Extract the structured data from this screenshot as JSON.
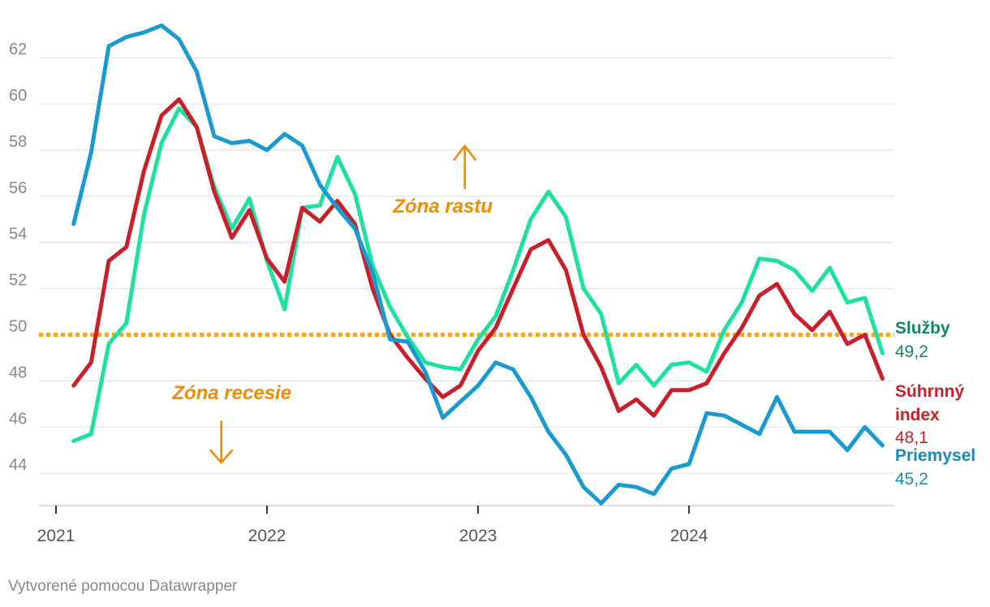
{
  "chart_data": {
    "type": "line",
    "title": "",
    "xlabel": "",
    "ylabel": "",
    "ylim": [
      42.6,
      63.8
    ],
    "yticks": [
      44,
      46,
      48,
      50,
      52,
      54,
      56,
      58,
      60,
      62
    ],
    "x_start": "2021-02",
    "x_ticks": [
      "2021",
      "2022",
      "2023",
      "2024"
    ],
    "reference_line": {
      "value": 50,
      "style": "dotted",
      "color": "#f5a623"
    },
    "annotations": [
      {
        "text": "Zóna rastu",
        "color": "#f08c00",
        "arrow": "up",
        "at": [
          "2022-11",
          55.3
        ]
      },
      {
        "text": "Zóna recesie",
        "color": "#f08c00",
        "arrow": "down",
        "at": [
          "2021-11",
          47.2
        ]
      }
    ],
    "series": [
      {
        "key": "sluzby",
        "name": "Služby",
        "end_label": "49,2",
        "color": "#1ee0a0",
        "label_color": "#0f8a5f",
        "values": [
          45.4,
          45.7,
          49.6,
          50.5,
          55.2,
          58.3,
          59.8,
          59.0,
          56.4,
          54.6,
          55.9,
          53.2,
          51.1,
          55.5,
          55.6,
          57.7,
          56.1,
          53.0,
          51.2,
          49.9,
          48.8,
          48.6,
          48.5,
          49.8,
          50.8,
          52.8,
          55.0,
          56.2,
          55.1,
          52.0,
          50.9,
          47.9,
          48.7,
          47.8,
          48.7,
          48.8,
          48.4,
          50.2,
          51.4,
          53.3,
          53.2,
          52.8,
          51.9,
          52.9,
          51.4,
          51.6,
          49.2
        ]
      },
      {
        "key": "suhrnny",
        "name": "Súhrnný index",
        "name_lines": [
          "Súhrnný",
          "index"
        ],
        "end_label": "48,1",
        "color": "#c8202b",
        "label_color": "#c8202b",
        "values": [
          47.8,
          48.8,
          53.2,
          53.8,
          57.1,
          59.5,
          60.2,
          59.0,
          56.2,
          54.2,
          55.4,
          53.3,
          52.3,
          55.5,
          54.9,
          55.8,
          54.8,
          52.0,
          50.0,
          49.0,
          48.1,
          47.3,
          47.8,
          49.3,
          50.3,
          52.0,
          53.7,
          54.1,
          52.8,
          50.0,
          48.6,
          46.7,
          47.2,
          46.5,
          47.6,
          47.6,
          47.9,
          49.2,
          50.3,
          51.7,
          52.2,
          50.9,
          50.2,
          51.0,
          49.6,
          50.0,
          48.1
        ]
      },
      {
        "key": "priemysel",
        "name": "Priemysel",
        "end_label": "45,2",
        "color": "#1a9bd0",
        "label_color": "#1a8ab8",
        "values": [
          54.8,
          57.9,
          62.5,
          62.9,
          63.1,
          63.4,
          62.8,
          61.4,
          58.6,
          58.3,
          58.4,
          58.0,
          58.7,
          58.2,
          56.5,
          55.5,
          54.6,
          52.7,
          49.8,
          49.7,
          48.4,
          46.4,
          47.1,
          47.8,
          48.8,
          48.5,
          47.3,
          45.8,
          44.8,
          43.4,
          42.7,
          43.5,
          43.4,
          43.1,
          44.2,
          44.4,
          46.6,
          46.5,
          46.1,
          45.7,
          47.3,
          45.8,
          45.8,
          45.8,
          45.0,
          46.0,
          45.2
        ]
      }
    ]
  },
  "credit": "Vytvorené pomocou Datawrapper"
}
